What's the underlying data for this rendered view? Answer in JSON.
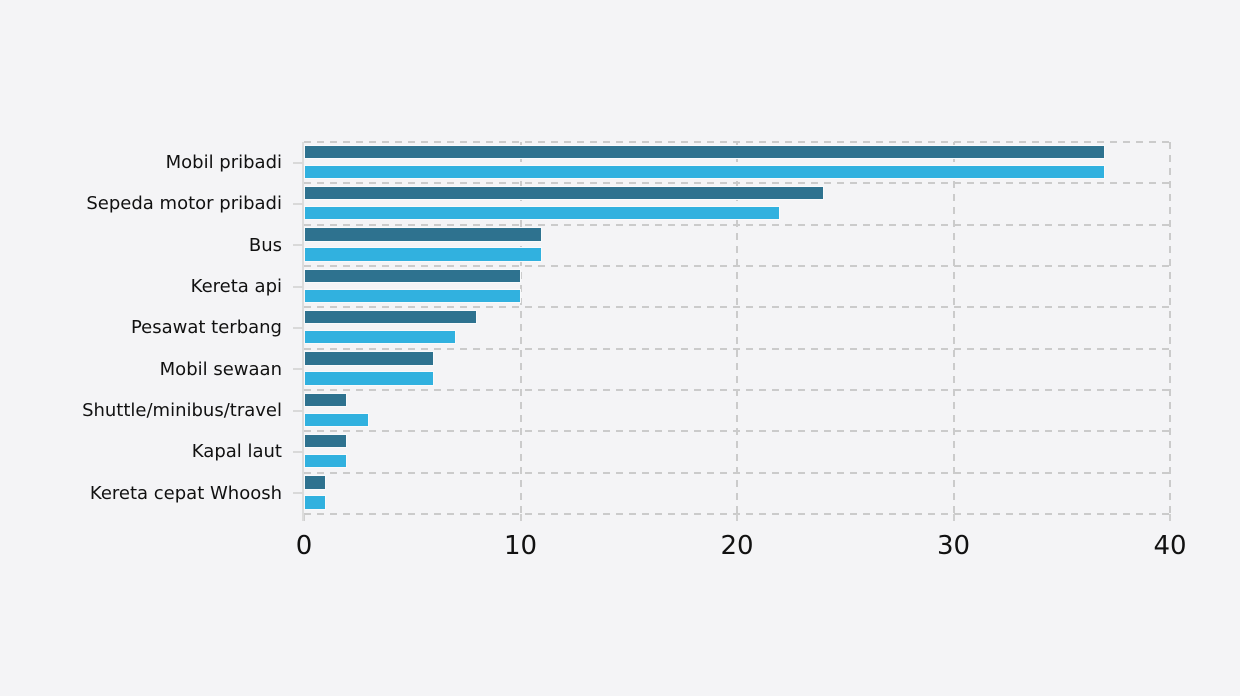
{
  "chart_data": {
    "type": "bar",
    "orientation": "horizontal",
    "title": "",
    "xlabel": "",
    "ylabel": "",
    "categories": [
      "Mobil pribadi",
      "Sepeda motor pribadi",
      "Bus",
      "Kereta api",
      "Pesawat terbang",
      "Mobil sewaan",
      "Shuttle/minibus/travel",
      "Kapal laut",
      "Kereta cepat Whoosh"
    ],
    "series": [
      {
        "name": "series-1",
        "color": "#2e728f",
        "values": [
          37,
          24,
          11,
          10,
          8,
          6,
          2,
          2,
          1
        ]
      },
      {
        "name": "series-2",
        "color": "#31b1df",
        "values": [
          37,
          22,
          11,
          10,
          7,
          6,
          3,
          2,
          1
        ]
      }
    ],
    "xlim": [
      0,
      40
    ],
    "xticks": [
      0,
      10,
      20,
      30,
      40
    ],
    "grid": "dashed",
    "legend": "none",
    "colors": {
      "background": "#f4f4f6",
      "gridline": "#cbcbcb",
      "axis_line": "#dcdcdc",
      "text": "#111111"
    }
  }
}
